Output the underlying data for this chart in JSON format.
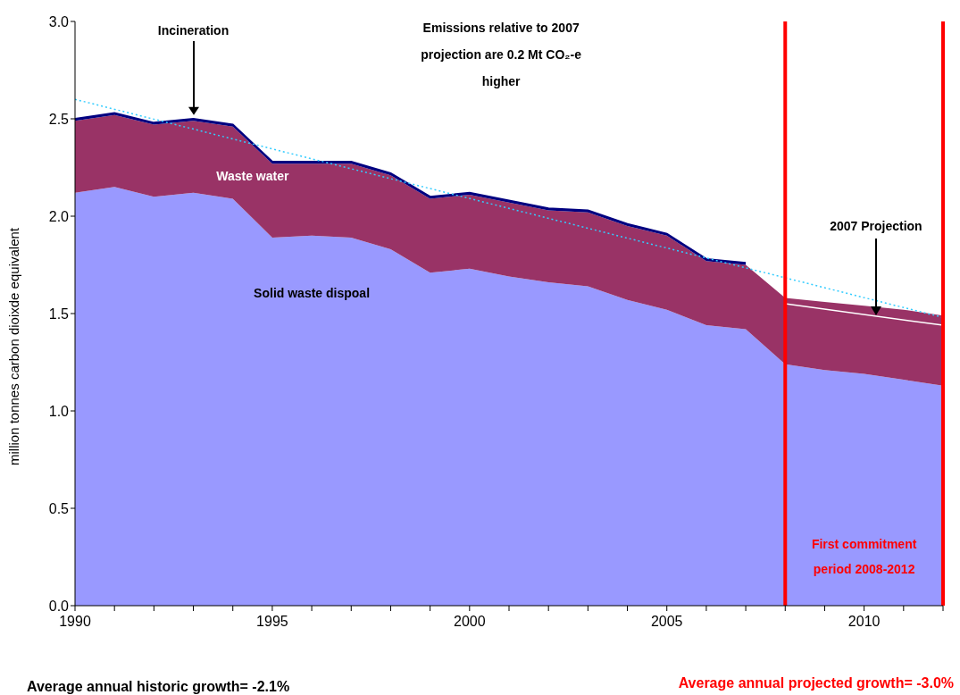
{
  "chart_data": {
    "type": "area",
    "stacked": true,
    "ylabel": "million tonnes carbon dioixde equivalent",
    "x": [
      1990,
      1991,
      1992,
      1993,
      1994,
      1995,
      1996,
      1997,
      1998,
      1999,
      2000,
      2001,
      2002,
      2003,
      2004,
      2005,
      2006,
      2007,
      2008,
      2009,
      2010,
      2011,
      2012
    ],
    "series": [
      {
        "name": "Solid waste dispoal",
        "color": "#9999ff",
        "values": [
          2.12,
          2.15,
          2.1,
          2.12,
          2.09,
          1.89,
          1.9,
          1.89,
          1.83,
          1.71,
          1.73,
          1.69,
          1.66,
          1.64,
          1.57,
          1.52,
          1.44,
          1.42,
          1.24,
          1.21,
          1.19,
          1.16,
          1.13
        ]
      },
      {
        "name": "Waste water",
        "color": "#993366",
        "values": [
          0.37,
          0.37,
          0.37,
          0.37,
          0.37,
          0.38,
          0.37,
          0.38,
          0.38,
          0.38,
          0.38,
          0.38,
          0.37,
          0.38,
          0.38,
          0.38,
          0.33,
          0.33,
          0.34,
          0.35,
          0.35,
          0.36,
          0.36
        ]
      },
      {
        "name": "Incineration",
        "color": "#000080",
        "values": [
          0.01,
          0.01,
          0.01,
          0.01,
          0.01,
          0.01,
          0.01,
          0.01,
          0.01,
          0.01,
          0.01,
          0.01,
          0.01,
          0.01,
          0.01,
          0.01,
          0.01,
          0.01,
          null,
          null,
          null,
          null,
          null
        ]
      },
      {
        "type": "line",
        "color": "#33ccff",
        "line_style": "dotted",
        "x": [
          1990,
          2012
        ],
        "values": [
          2.6,
          1.48
        ]
      },
      {
        "type": "line",
        "color": "#ffffff",
        "line_style": "solid",
        "x": [
          2008,
          2012
        ],
        "values": [
          1.55,
          1.44
        ]
      }
    ],
    "xlim": [
      1990,
      2012
    ],
    "xticks": [
      1990,
      {
        "value": 1991,
        "label": null
      },
      {
        "value": 1992,
        "label": null
      },
      {
        "value": 1993,
        "label": null
      },
      {
        "value": 1994,
        "label": null
      },
      1995,
      {
        "value": 1996,
        "label": null
      },
      {
        "value": 1997,
        "label": null
      },
      {
        "value": 1998,
        "label": null
      },
      {
        "value": 1999,
        "label": null
      },
      2000,
      {
        "value": 2001,
        "label": null
      },
      {
        "value": 2002,
        "label": null
      },
      {
        "value": 2003,
        "label": null
      },
      {
        "value": 2004,
        "label": null
      },
      2005,
      {
        "value": 2006,
        "label": null
      },
      {
        "value": 2007,
        "label": null
      },
      {
        "value": 2008,
        "label": null
      },
      {
        "value": 2009,
        "label": null
      },
      2010,
      {
        "value": 2011,
        "label": null
      },
      {
        "value": 2012,
        "label": null
      }
    ],
    "ylim": [
      0,
      3
    ],
    "yticks": [
      {
        "value": 0,
        "label": "0.0"
      },
      {
        "value": 0.5,
        "label": "0.5"
      },
      {
        "value": 1,
        "label": "1.0"
      },
      {
        "value": 1.5,
        "label": "1.5"
      },
      {
        "value": 2,
        "label": "2.0"
      },
      {
        "value": 2.5,
        "label": "2.5"
      },
      {
        "value": 3,
        "label": "3.0"
      }
    ],
    "ref_lines": [
      {
        "axis": "x",
        "value": 2008,
        "color": "#ff0000"
      },
      {
        "axis": "x",
        "value": 2012,
        "color": "#ff0000"
      }
    ],
    "annotations": [
      "Emissions relative to 2007 projection are 0.2 Mt CO₂-e higher",
      {
        "text": "2007 Projection",
        "x": 2010.3,
        "y": 1.49
      },
      "First commitment period 2008-2012",
      "Average annual historic growth= -2.1%",
      "Average annual projected growth= -3.0%"
    ],
    "grid": false,
    "legend": false
  }
}
